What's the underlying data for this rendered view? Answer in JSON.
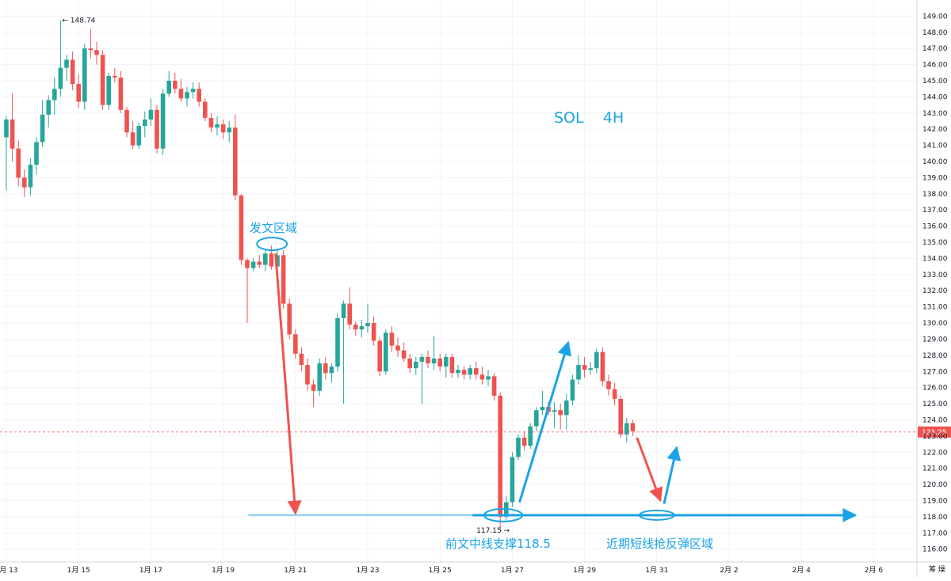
{
  "chart_data": {
    "type": "candlestick",
    "title": "SOL    4H",
    "xlabel": "",
    "ylabel": "",
    "ylim": [
      115.2,
      150.0
    ],
    "y_axis_position": "right",
    "y_ticks": [
      116,
      117,
      118,
      119,
      120,
      121,
      122,
      123,
      124,
      125,
      126,
      127,
      128,
      129,
      130,
      131,
      132,
      133,
      134,
      135,
      136,
      137,
      138,
      139,
      140,
      141,
      142,
      143,
      144,
      145,
      146,
      147,
      148,
      149
    ],
    "x_ticks": [
      "1月 13",
      "1月 15",
      "1月 17",
      "1月 19",
      "1月 21",
      "1月 23",
      "1月 25",
      "1月 27",
      "1月 29",
      "1月 31",
      "2月 2",
      "2月 4",
      "2月 6"
    ],
    "x_tick_days": [
      13,
      15,
      17,
      19,
      21,
      23,
      25,
      27,
      29,
      31,
      33,
      35,
      37
    ],
    "colors": {
      "up": "#26a69a",
      "down": "#ef5350",
      "annotation": "#1aa3e6",
      "current_price_line": "#ef5350"
    },
    "current_price": 123.25,
    "current_price_label": "123.25",
    "high_marker": {
      "value": 148.74,
      "label": "148.74"
    },
    "low_marker": {
      "value": 117.15,
      "label": "117.15"
    },
    "horizontal_line": {
      "value": 118.1
    },
    "annotations": {
      "post_area": "发文区域",
      "support": "前文中线支撑118.5",
      "rebound_area": "近期短线抢反弹区域"
    },
    "axis_corner_label": "筹 燥",
    "candles": [
      {
        "t": 13.0,
        "o": 141.5,
        "h": 142.8,
        "l": 138.2,
        "c": 142.6
      },
      {
        "t": 13.1667,
        "o": 142.6,
        "h": 144.2,
        "l": 140.0,
        "c": 140.8
      },
      {
        "t": 13.3333,
        "o": 140.8,
        "h": 141.3,
        "l": 138.5,
        "c": 139.0
      },
      {
        "t": 13.5,
        "o": 139.0,
        "h": 139.5,
        "l": 137.8,
        "c": 138.4
      },
      {
        "t": 13.6667,
        "o": 138.4,
        "h": 140.2,
        "l": 137.9,
        "c": 139.8
      },
      {
        "t": 13.8333,
        "o": 139.8,
        "h": 141.5,
        "l": 139.2,
        "c": 141.2
      },
      {
        "t": 14.0,
        "o": 141.2,
        "h": 143.8,
        "l": 140.9,
        "c": 142.9
      },
      {
        "t": 14.1667,
        "o": 142.9,
        "h": 144.1,
        "l": 142.1,
        "c": 143.8
      },
      {
        "t": 14.3333,
        "o": 143.8,
        "h": 145.2,
        "l": 142.9,
        "c": 144.5
      },
      {
        "t": 14.5,
        "o": 144.5,
        "h": 148.74,
        "l": 144.0,
        "c": 145.8
      },
      {
        "t": 14.6667,
        "o": 145.8,
        "h": 146.6,
        "l": 145.0,
        "c": 146.3
      },
      {
        "t": 14.8333,
        "o": 146.3,
        "h": 146.8,
        "l": 144.4,
        "c": 144.8
      },
      {
        "t": 15.0,
        "o": 144.8,
        "h": 145.4,
        "l": 143.3,
        "c": 143.7
      },
      {
        "t": 15.1667,
        "o": 143.7,
        "h": 147.3,
        "l": 143.2,
        "c": 147.0
      },
      {
        "t": 15.3333,
        "o": 147.0,
        "h": 148.2,
        "l": 146.4,
        "c": 146.9
      },
      {
        "t": 15.5,
        "o": 146.9,
        "h": 147.4,
        "l": 146.0,
        "c": 146.6
      },
      {
        "t": 15.6667,
        "o": 146.6,
        "h": 146.9,
        "l": 143.2,
        "c": 143.5
      },
      {
        "t": 15.8333,
        "o": 143.5,
        "h": 145.5,
        "l": 143.2,
        "c": 145.3
      },
      {
        "t": 16.0,
        "o": 145.3,
        "h": 145.8,
        "l": 144.9,
        "c": 145.2
      },
      {
        "t": 16.1667,
        "o": 145.2,
        "h": 145.6,
        "l": 143.0,
        "c": 143.2
      },
      {
        "t": 16.3333,
        "o": 143.2,
        "h": 143.4,
        "l": 141.5,
        "c": 141.8
      },
      {
        "t": 16.5,
        "o": 141.8,
        "h": 142.5,
        "l": 140.8,
        "c": 141.0
      },
      {
        "t": 16.6667,
        "o": 141.0,
        "h": 142.4,
        "l": 140.8,
        "c": 142.2
      },
      {
        "t": 16.8333,
        "o": 142.2,
        "h": 143.1,
        "l": 141.5,
        "c": 142.6
      },
      {
        "t": 17.0,
        "o": 142.6,
        "h": 143.9,
        "l": 142.2,
        "c": 143.2
      },
      {
        "t": 17.1667,
        "o": 143.2,
        "h": 143.5,
        "l": 140.5,
        "c": 140.8
      },
      {
        "t": 17.3333,
        "o": 140.8,
        "h": 144.5,
        "l": 140.4,
        "c": 144.2
      },
      {
        "t": 17.5,
        "o": 144.2,
        "h": 145.6,
        "l": 144.0,
        "c": 145.0
      },
      {
        "t": 17.6667,
        "o": 145.0,
        "h": 145.5,
        "l": 144.2,
        "c": 144.5
      },
      {
        "t": 17.8333,
        "o": 144.5,
        "h": 145.1,
        "l": 143.7,
        "c": 143.9
      },
      {
        "t": 18.0,
        "o": 143.9,
        "h": 144.6,
        "l": 143.4,
        "c": 144.3
      },
      {
        "t": 18.1667,
        "o": 144.3,
        "h": 144.9,
        "l": 143.9,
        "c": 144.5
      },
      {
        "t": 18.3333,
        "o": 144.5,
        "h": 144.9,
        "l": 143.4,
        "c": 143.7
      },
      {
        "t": 18.5,
        "o": 143.7,
        "h": 143.9,
        "l": 142.5,
        "c": 142.7
      },
      {
        "t": 18.6667,
        "o": 142.7,
        "h": 143.0,
        "l": 141.8,
        "c": 142.1
      },
      {
        "t": 18.8333,
        "o": 142.1,
        "h": 142.8,
        "l": 141.6,
        "c": 142.3
      },
      {
        "t": 19.0,
        "o": 142.3,
        "h": 142.6,
        "l": 141.4,
        "c": 141.8
      },
      {
        "t": 19.1667,
        "o": 141.8,
        "h": 142.5,
        "l": 141.2,
        "c": 142.1
      },
      {
        "t": 19.3333,
        "o": 142.1,
        "h": 142.9,
        "l": 137.6,
        "c": 137.9
      },
      {
        "t": 19.5,
        "o": 137.9,
        "h": 138.0,
        "l": 133.6,
        "c": 133.9
      },
      {
        "t": 19.6667,
        "o": 133.9,
        "h": 134.0,
        "l": 130.0,
        "c": 133.4
      },
      {
        "t": 19.8333,
        "o": 133.4,
        "h": 134.0,
        "l": 133.2,
        "c": 133.8
      },
      {
        "t": 20.0,
        "o": 133.8,
        "h": 134.2,
        "l": 133.4,
        "c": 133.6
      },
      {
        "t": 20.1667,
        "o": 133.6,
        "h": 134.5,
        "l": 133.2,
        "c": 134.3
      },
      {
        "t": 20.3333,
        "o": 134.3,
        "h": 134.8,
        "l": 133.3,
        "c": 133.5
      },
      {
        "t": 20.5,
        "o": 133.5,
        "h": 134.6,
        "l": 133.1,
        "c": 134.2
      },
      {
        "t": 20.6667,
        "o": 134.2,
        "h": 134.5,
        "l": 130.9,
        "c": 131.2
      },
      {
        "t": 20.8333,
        "o": 131.2,
        "h": 131.5,
        "l": 129.0,
        "c": 129.3
      },
      {
        "t": 21.0,
        "o": 129.3,
        "h": 129.6,
        "l": 127.8,
        "c": 128.1
      },
      {
        "t": 21.1667,
        "o": 128.1,
        "h": 128.5,
        "l": 127.0,
        "c": 127.4
      },
      {
        "t": 21.3333,
        "o": 127.4,
        "h": 127.8,
        "l": 125.8,
        "c": 126.2
      },
      {
        "t": 21.5,
        "o": 126.2,
        "h": 126.5,
        "l": 124.8,
        "c": 125.8
      },
      {
        "t": 21.6667,
        "o": 125.8,
        "h": 127.8,
        "l": 125.5,
        "c": 127.5
      },
      {
        "t": 21.8333,
        "o": 127.5,
        "h": 127.9,
        "l": 126.5,
        "c": 126.9
      },
      {
        "t": 22.0,
        "o": 126.9,
        "h": 127.5,
        "l": 126.3,
        "c": 127.3
      },
      {
        "t": 22.1667,
        "o": 127.3,
        "h": 130.6,
        "l": 127.0,
        "c": 130.3
      },
      {
        "t": 22.3333,
        "o": 130.3,
        "h": 131.4,
        "l": 125.0,
        "c": 131.2
      },
      {
        "t": 22.5,
        "o": 131.2,
        "h": 132.2,
        "l": 129.6,
        "c": 129.9
      },
      {
        "t": 22.6667,
        "o": 129.9,
        "h": 130.1,
        "l": 129.2,
        "c": 129.6
      },
      {
        "t": 22.8333,
        "o": 129.6,
        "h": 130.2,
        "l": 129.1,
        "c": 129.8
      },
      {
        "t": 23.0,
        "o": 129.8,
        "h": 131.2,
        "l": 129.4,
        "c": 130.0
      },
      {
        "t": 23.1667,
        "o": 130.0,
        "h": 130.4,
        "l": 128.6,
        "c": 128.9
      },
      {
        "t": 23.3333,
        "o": 128.9,
        "h": 129.1,
        "l": 126.7,
        "c": 127.0
      },
      {
        "t": 23.5,
        "o": 127.0,
        "h": 129.6,
        "l": 126.8,
        "c": 129.4
      },
      {
        "t": 23.6667,
        "o": 129.4,
        "h": 129.8,
        "l": 128.2,
        "c": 128.6
      },
      {
        "t": 23.8333,
        "o": 128.6,
        "h": 129.1,
        "l": 127.9,
        "c": 128.3
      },
      {
        "t": 24.0,
        "o": 128.3,
        "h": 128.8,
        "l": 127.6,
        "c": 127.8
      },
      {
        "t": 24.1667,
        "o": 127.8,
        "h": 128.1,
        "l": 126.9,
        "c": 127.2
      },
      {
        "t": 24.3333,
        "o": 127.2,
        "h": 127.9,
        "l": 126.8,
        "c": 127.6
      },
      {
        "t": 24.5,
        "o": 127.6,
        "h": 128.1,
        "l": 125.0,
        "c": 127.9
      },
      {
        "t": 24.6667,
        "o": 127.9,
        "h": 128.3,
        "l": 127.2,
        "c": 127.5
      },
      {
        "t": 24.8333,
        "o": 127.5,
        "h": 129.2,
        "l": 127.1,
        "c": 127.8
      },
      {
        "t": 25.0,
        "o": 127.8,
        "h": 128.1,
        "l": 127.0,
        "c": 127.3
      },
      {
        "t": 25.1667,
        "o": 127.3,
        "h": 128.1,
        "l": 126.6,
        "c": 127.9
      },
      {
        "t": 25.3333,
        "o": 127.9,
        "h": 128.1,
        "l": 126.6,
        "c": 126.9
      },
      {
        "t": 25.5,
        "o": 126.9,
        "h": 127.4,
        "l": 126.6,
        "c": 127.1
      },
      {
        "t": 25.6667,
        "o": 127.1,
        "h": 127.3,
        "l": 126.5,
        "c": 126.8
      },
      {
        "t": 25.8333,
        "o": 126.8,
        "h": 127.4,
        "l": 126.5,
        "c": 127.2
      },
      {
        "t": 26.0,
        "o": 127.2,
        "h": 127.6,
        "l": 126.5,
        "c": 126.8
      },
      {
        "t": 26.1667,
        "o": 126.8,
        "h": 127.3,
        "l": 126.2,
        "c": 126.5
      },
      {
        "t": 26.3333,
        "o": 126.5,
        "h": 127.1,
        "l": 126.1,
        "c": 126.7
      },
      {
        "t": 26.5,
        "o": 126.7,
        "h": 126.9,
        "l": 125.2,
        "c": 125.5
      },
      {
        "t": 26.6667,
        "o": 125.5,
        "h": 125.7,
        "l": 117.15,
        "c": 118.0
      },
      {
        "t": 26.8333,
        "o": 118.0,
        "h": 119.3,
        "l": 117.8,
        "c": 118.9
      },
      {
        "t": 27.0,
        "o": 118.9,
        "h": 122.0,
        "l": 118.6,
        "c": 121.7
      },
      {
        "t": 27.1667,
        "o": 121.7,
        "h": 123.1,
        "l": 121.5,
        "c": 122.9
      },
      {
        "t": 27.3333,
        "o": 122.9,
        "h": 123.3,
        "l": 122.1,
        "c": 122.4
      },
      {
        "t": 27.5,
        "o": 122.4,
        "h": 123.8,
        "l": 122.2,
        "c": 123.6
      },
      {
        "t": 27.6667,
        "o": 123.6,
        "h": 124.8,
        "l": 123.3,
        "c": 124.6
      },
      {
        "t": 27.8333,
        "o": 124.6,
        "h": 125.8,
        "l": 124.3,
        "c": 124.8
      },
      {
        "t": 28.0,
        "o": 124.8,
        "h": 125.1,
        "l": 124.3,
        "c": 124.5
      },
      {
        "t": 28.1667,
        "o": 124.5,
        "h": 125.1,
        "l": 123.5,
        "c": 124.6
      },
      {
        "t": 28.3333,
        "o": 124.6,
        "h": 125.0,
        "l": 123.4,
        "c": 124.3
      },
      {
        "t": 28.5,
        "o": 124.3,
        "h": 125.6,
        "l": 123.4,
        "c": 125.2
      },
      {
        "t": 28.6667,
        "o": 125.2,
        "h": 126.8,
        "l": 124.9,
        "c": 126.5
      },
      {
        "t": 28.8333,
        "o": 126.5,
        "h": 128.0,
        "l": 126.2,
        "c": 127.4
      },
      {
        "t": 29.0,
        "o": 127.4,
        "h": 127.9,
        "l": 126.6,
        "c": 127.1
      },
      {
        "t": 29.1667,
        "o": 127.1,
        "h": 127.6,
        "l": 126.8,
        "c": 127.2
      },
      {
        "t": 29.3333,
        "o": 127.2,
        "h": 128.4,
        "l": 126.9,
        "c": 128.2
      },
      {
        "t": 29.5,
        "o": 128.2,
        "h": 128.5,
        "l": 126.1,
        "c": 126.4
      },
      {
        "t": 29.6667,
        "o": 126.4,
        "h": 126.8,
        "l": 125.5,
        "c": 125.9
      },
      {
        "t": 29.8333,
        "o": 125.9,
        "h": 126.3,
        "l": 124.9,
        "c": 125.3
      },
      {
        "t": 30.0,
        "o": 125.3,
        "h": 125.5,
        "l": 122.9,
        "c": 123.1
      },
      {
        "t": 30.1667,
        "o": 123.1,
        "h": 124.1,
        "l": 122.6,
        "c": 123.8
      },
      {
        "t": 30.3333,
        "o": 123.8,
        "h": 124.0,
        "l": 123.0,
        "c": 123.3
      }
    ]
  }
}
